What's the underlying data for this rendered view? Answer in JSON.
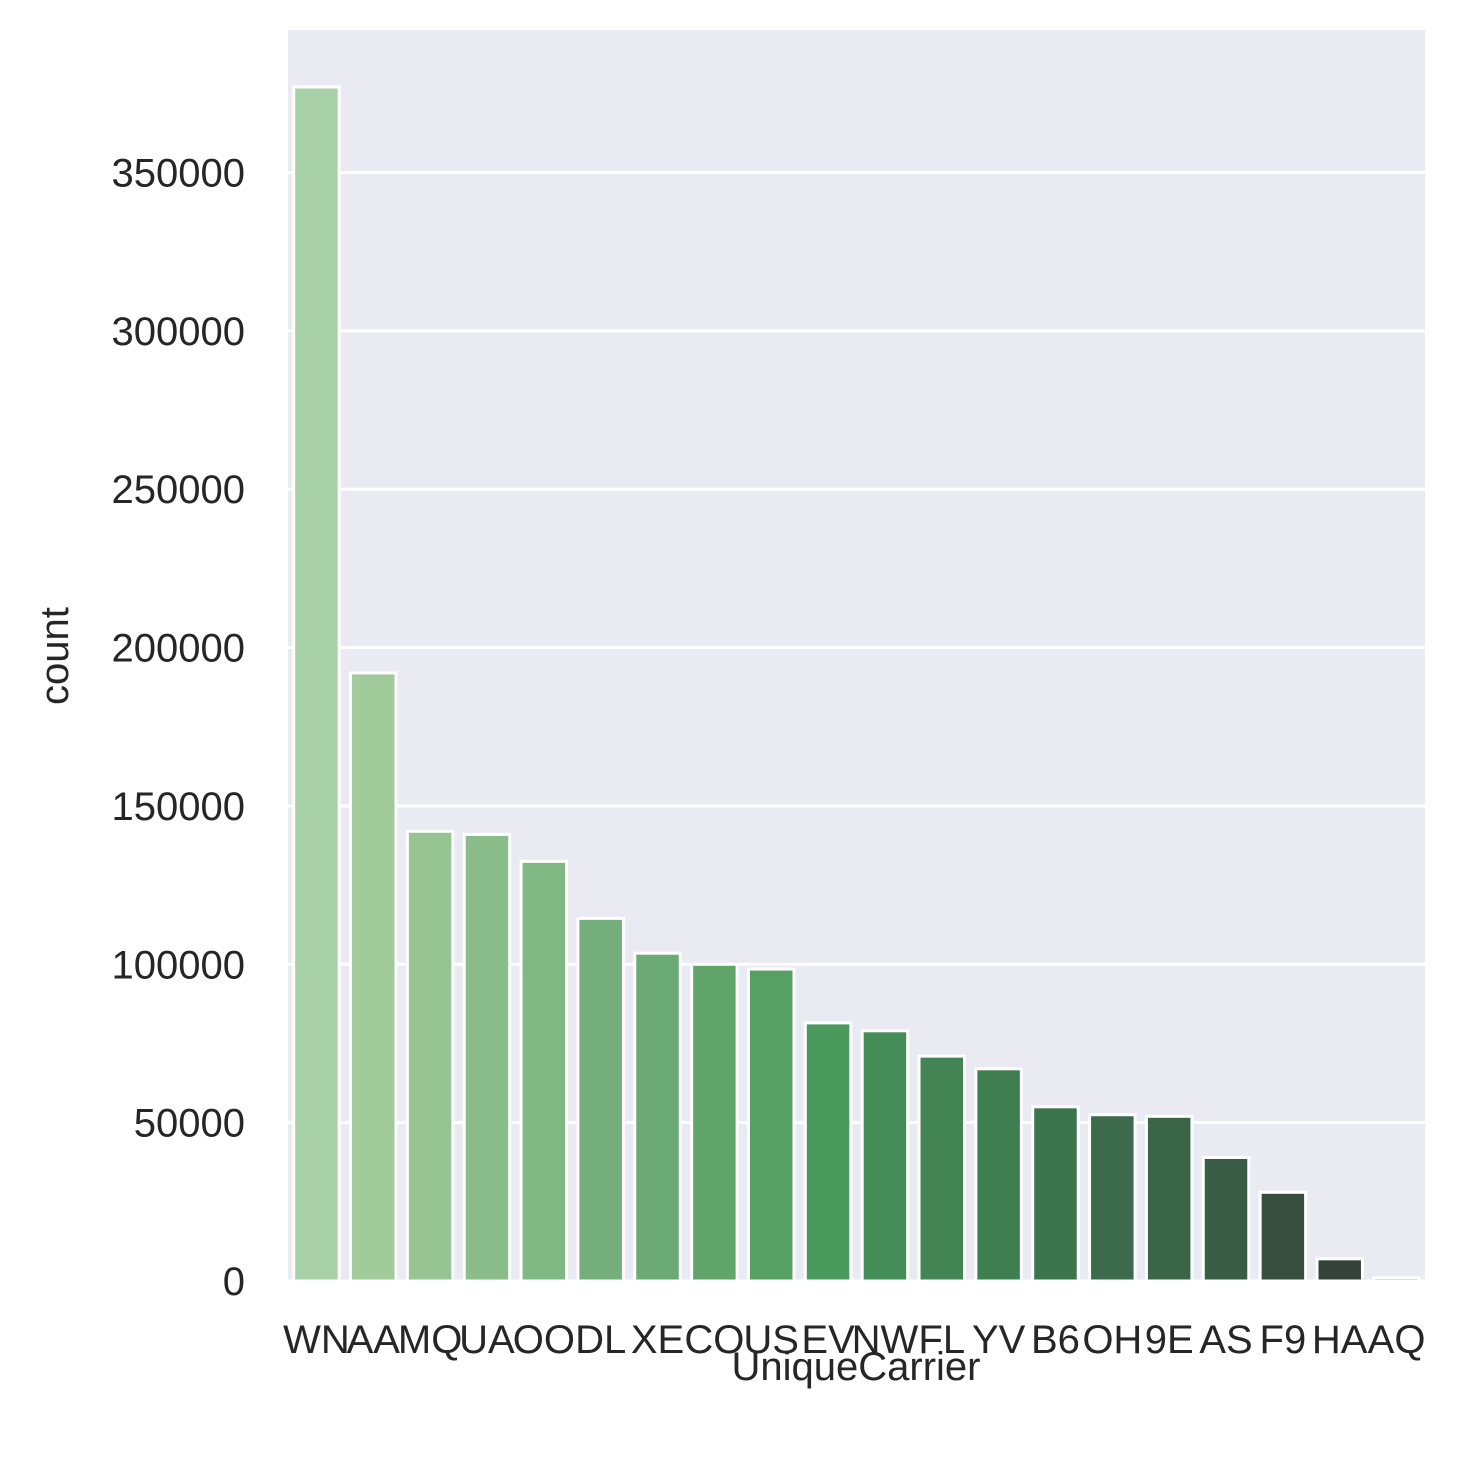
{
  "chart_data": {
    "type": "bar",
    "title": "",
    "xlabel": "UniqueCarrier",
    "ylabel": "count",
    "categories": [
      "WN",
      "AA",
      "MQ",
      "UA",
      "OO",
      "DL",
      "XE",
      "CO",
      "US",
      "EV",
      "NW",
      "FL",
      "YV",
      "B6",
      "OH",
      "9E",
      "AS",
      "F9",
      "HA",
      "AQ"
    ],
    "values": [
      377000,
      192000,
      142000,
      141000,
      132500,
      114500,
      103500,
      100000,
      98500,
      81500,
      79000,
      71000,
      67000,
      55000,
      52500,
      52000,
      39000,
      28000,
      7000,
      1000
    ],
    "ylim": [
      0,
      395000
    ],
    "yticks": [
      0,
      50000,
      100000,
      150000,
      200000,
      250000,
      300000,
      350000
    ],
    "ytick_labels": [
      "0",
      "50000",
      "100000",
      "150000",
      "200000",
      "250000",
      "300000",
      "350000"
    ],
    "grid": true,
    "colors": [
      "#a9d1a7",
      "#a1cb9b",
      "#96c493",
      "#8abd89",
      "#80b884",
      "#74ae7a",
      "#6baa74",
      "#61a56b",
      "#56a063",
      "#4a9a5d",
      "#448c58",
      "#428453",
      "#3f7e51",
      "#3c744d",
      "#3b6b4a",
      "#3a6647",
      "#395c44",
      "#374e3e",
      "#35423a",
      "#333333"
    ],
    "background": "#eaeaf2",
    "grid_color": "#ffffff"
  }
}
